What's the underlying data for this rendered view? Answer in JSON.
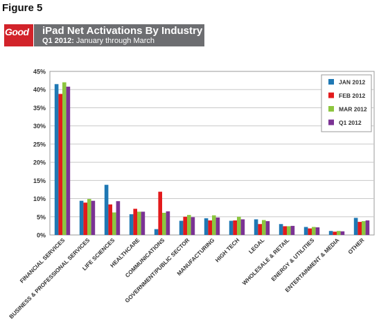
{
  "figure_label": "Figure 5",
  "logo_text": "Good",
  "header": {
    "title": "iPad Net Activations By Industry",
    "subtitle_bold": "Q1 2012:",
    "subtitle_rest": " January through March"
  },
  "chart_data": {
    "type": "bar",
    "title": "iPad Net Activations By Industry",
    "ylim": [
      0,
      45
    ],
    "yticks": [
      "0%",
      "5%",
      "10%",
      "15%",
      "20%",
      "25%",
      "30%",
      "35%",
      "40%",
      "45%"
    ],
    "grid": true,
    "legend_position": "top-right",
    "categories": [
      "FINANCIAL SERVICES",
      "BUSINESS & PROFESSIONAL SERVICES",
      "LIFE SCIENCES",
      "HEALTHCARE",
      "COMMUNICATIONS",
      "GOVERNMENT/PUBLIC SECTOR",
      "MANUFACTURING",
      "HIGH TECH",
      "LEGAL",
      "WHOLESALE & RETAIL",
      "ENERGY & UTILITIES",
      "ENTERTAINMENT & MEDIA",
      "OTHER"
    ],
    "series": [
      {
        "name": "JAN 2012",
        "color": "#1f78b4",
        "values": [
          41.5,
          9.4,
          13.8,
          5.7,
          1.6,
          3.9,
          4.6,
          3.9,
          4.3,
          3.0,
          2.2,
          1.1,
          4.7
        ]
      },
      {
        "name": "FEB 2012",
        "color": "#e31a1c",
        "values": [
          38.8,
          8.9,
          8.4,
          7.2,
          11.9,
          5.0,
          4.0,
          4.0,
          3.0,
          2.4,
          1.8,
          0.9,
          3.6
        ]
      },
      {
        "name": "MAR 2012",
        "color": "#8dc63f",
        "values": [
          42.0,
          9.9,
          6.2,
          6.4,
          6.1,
          5.5,
          5.4,
          5.0,
          4.1,
          2.4,
          2.2,
          1.1,
          3.8
        ]
      },
      {
        "name": "Q1 2012",
        "color": "#7b3294",
        "values": [
          40.8,
          9.4,
          9.3,
          6.4,
          6.5,
          4.9,
          4.8,
          4.3,
          3.8,
          2.5,
          2.1,
          1.0,
          4.0
        ]
      }
    ]
  }
}
